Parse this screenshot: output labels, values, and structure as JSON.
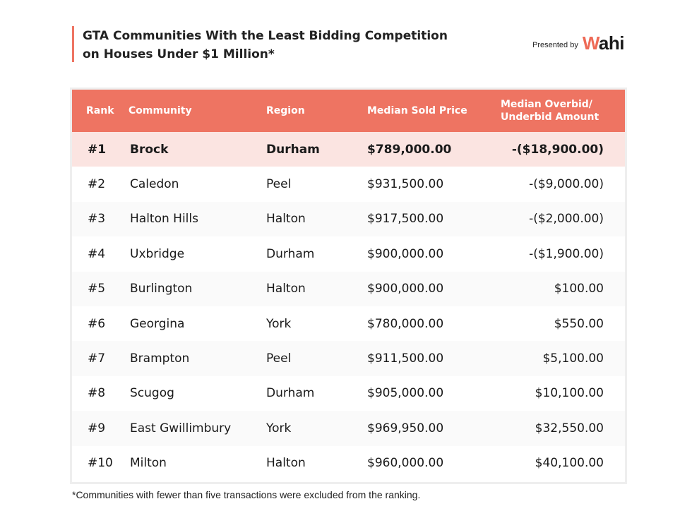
{
  "title": {
    "line1": "GTA Communities With the Least Bidding Competition",
    "line2": "on Houses Under $1 Million*"
  },
  "brand": {
    "presented_by": "Presented by",
    "logo_w": "W",
    "logo_rest": "ahi"
  },
  "table": {
    "headers": {
      "rank": "Rank",
      "community": "Community",
      "region": "Region",
      "price": "Median Sold Price",
      "amount_line1": "Median Overbid/",
      "amount_line2": "Underbid Amount"
    },
    "rows": [
      {
        "rank": "#1",
        "community": "Brock",
        "region": "Durham",
        "price": "$789,000.00",
        "amount": "-($18,900.00)"
      },
      {
        "rank": "#2",
        "community": "Caledon",
        "region": "Peel",
        "price": "$931,500.00",
        "amount": "-($9,000.00)"
      },
      {
        "rank": "#3",
        "community": "Halton Hills",
        "region": "Halton",
        "price": "$917,500.00",
        "amount": "-($2,000.00)"
      },
      {
        "rank": "#4",
        "community": "Uxbridge",
        "region": "Durham",
        "price": "$900,000.00",
        "amount": "-($1,900.00)"
      },
      {
        "rank": "#5",
        "community": "Burlington",
        "region": "Halton",
        "price": "$900,000.00",
        "amount": "$100.00"
      },
      {
        "rank": "#6",
        "community": "Georgina",
        "region": "York",
        "price": "$780,000.00",
        "amount": "$550.00"
      },
      {
        "rank": "#7",
        "community": "Brampton",
        "region": "Peel",
        "price": "$911,500.00",
        "amount": "$5,100.00"
      },
      {
        "rank": "#8",
        "community": "Scugog",
        "region": "Durham",
        "price": "$905,000.00",
        "amount": "$10,100.00"
      },
      {
        "rank": "#9",
        "community": "East Gwillimbury",
        "region": "York",
        "price": "$969,950.00",
        "amount": "$32,550.00"
      },
      {
        "rank": "#10",
        "community": "Milton",
        "region": "Halton",
        "price": "$960,000.00",
        "amount": "$40,100.00"
      }
    ]
  },
  "footnote": "*Communities with fewer than five transactions were excluded from the ranking.",
  "colors": {
    "accent": "#ee7462",
    "highlight_row": "#fbe4e1"
  }
}
